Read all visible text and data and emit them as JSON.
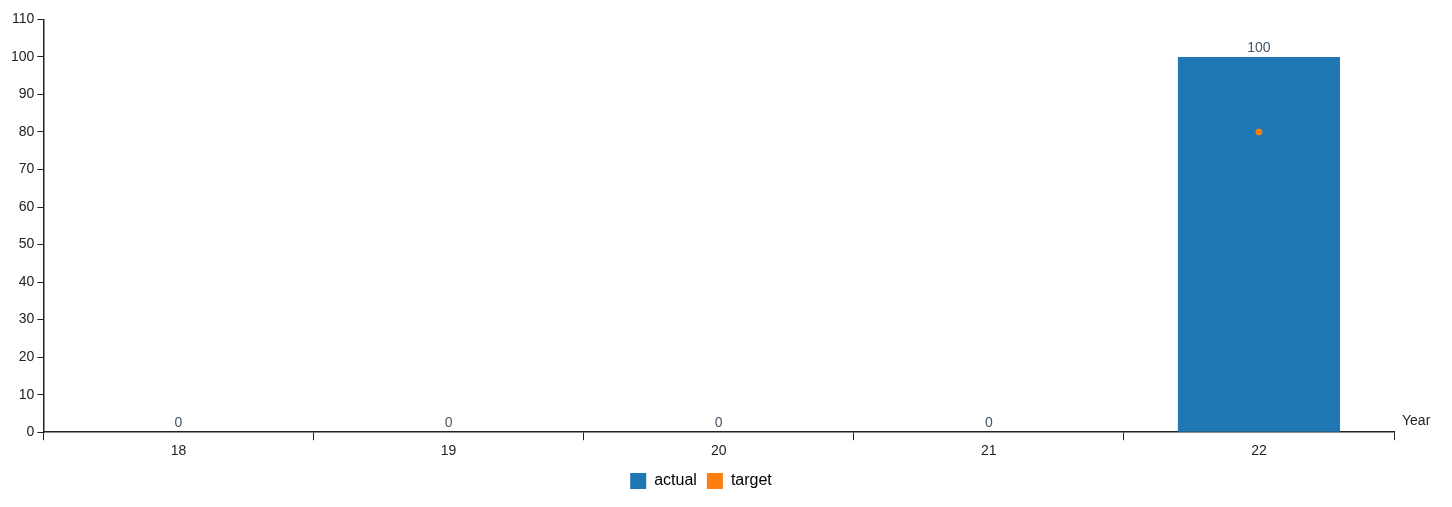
{
  "chart_data": {
    "type": "bar",
    "xlabel": "Year",
    "categories": [
      "18",
      "19",
      "20",
      "21",
      "22"
    ],
    "series": [
      {
        "name": "actual",
        "color": "#1f77b4",
        "values": [
          0,
          0,
          0,
          0,
          100
        ],
        "value_labels": [
          "0",
          "0",
          "0",
          "0",
          "100"
        ]
      },
      {
        "name": "target",
        "type": "scatter",
        "color": "#ff7f0e",
        "values": [
          null,
          null,
          null,
          null,
          80
        ],
        "marker": "circle"
      }
    ],
    "ylim": [
      0,
      110
    ],
    "yticks": [
      0,
      10,
      20,
      30,
      40,
      50,
      60,
      70,
      80,
      90,
      100,
      110
    ],
    "grid": false,
    "legend": "bottom"
  }
}
